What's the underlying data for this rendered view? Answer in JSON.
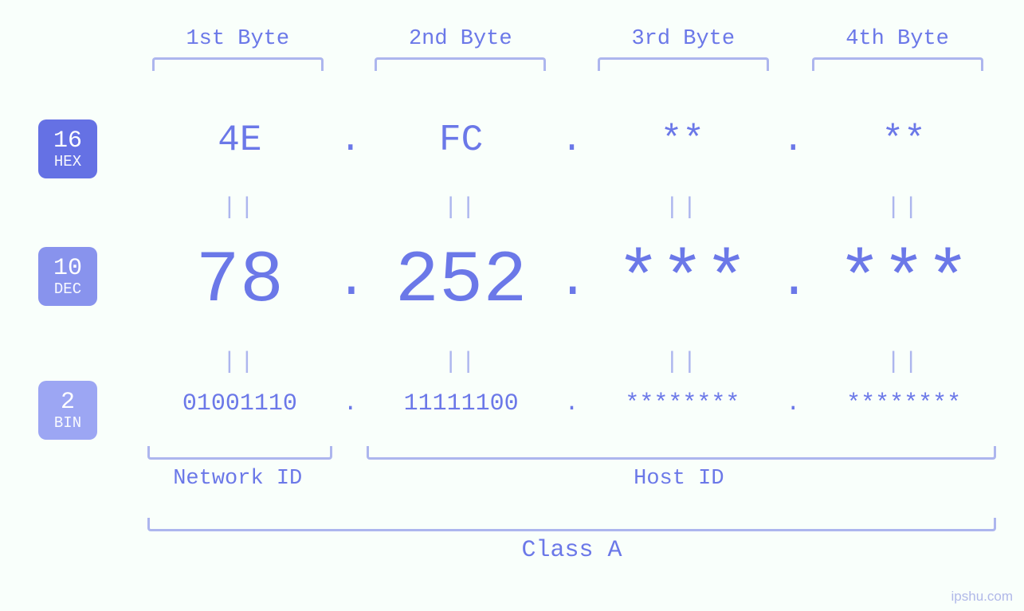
{
  "colors": {
    "accent": "#6b78e8",
    "badge_hex": "#6571e4",
    "badge_dec": "#8893ed",
    "badge_bin": "#9ca6f3",
    "bracket": "#adb6ee",
    "background": "#f9fffb"
  },
  "bytes": {
    "labels": [
      "1st Byte",
      "2nd Byte",
      "3rd Byte",
      "4th Byte"
    ]
  },
  "bases": {
    "hex": {
      "num": "16",
      "name": "HEX",
      "values": [
        "4E",
        "FC",
        "**",
        "**"
      ]
    },
    "dec": {
      "num": "10",
      "name": "DEC",
      "values": [
        "78",
        "252",
        "***",
        "***"
      ]
    },
    "bin": {
      "num": "2",
      "name": "BIN",
      "values": [
        "01001110",
        "11111100",
        "********",
        "********"
      ]
    }
  },
  "equals": "||",
  "dot": ".",
  "bottom": {
    "network_id": "Network ID",
    "host_id": "Host ID",
    "class": "Class A"
  },
  "layout": {
    "col_positions_pct": [
      1,
      27,
      53,
      78
    ],
    "col_width_pct": 20,
    "network_left_pct": 0.5,
    "network_width_pct": 21,
    "host_left_pct": 26,
    "host_width_pct": 73,
    "class_left_pct": 0.5,
    "class_width_pct": 98.5,
    "font": {
      "byte_label": 27,
      "hex": 46,
      "dec": 92,
      "bin": 30,
      "eq": 30,
      "bottom_label": 27,
      "class": 30
    }
  },
  "watermark": "ipshu.com"
}
